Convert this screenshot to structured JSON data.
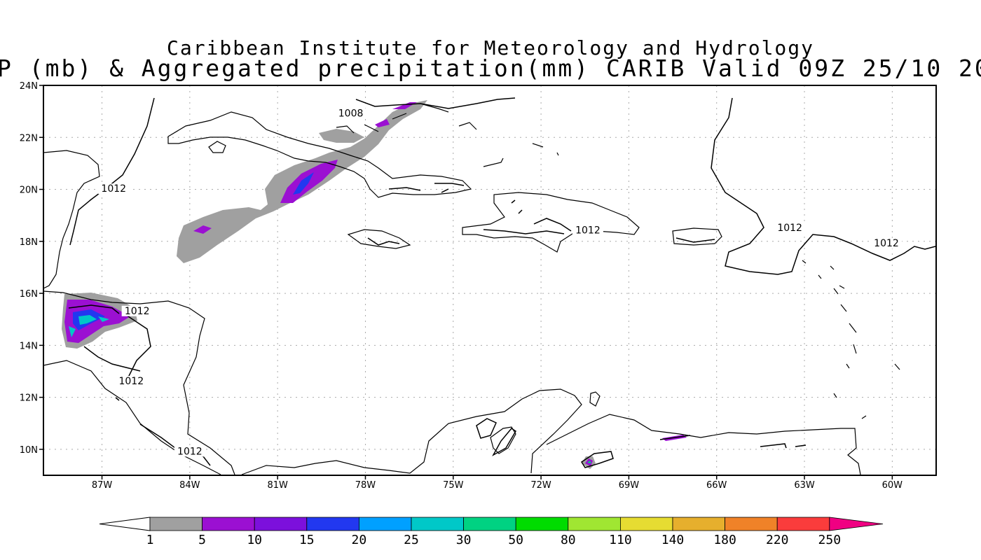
{
  "title": {
    "line1": "Caribbean Institute for Meteorology and Hydrology",
    "line2": "P (mb) & Aggregated precipitation(mm) CARIB Valid 09Z 25/10 20"
  },
  "map": {
    "lon_range": [
      -89,
      -58.5
    ],
    "lat_range": [
      9,
      24
    ],
    "lat_ticks": [
      "24N",
      "22N",
      "20N",
      "18N",
      "16N",
      "14N",
      "12N",
      "10N"
    ],
    "lat_values": [
      24,
      22,
      20,
      18,
      16,
      14,
      12,
      10
    ],
    "lon_ticks": [
      "87W",
      "84W",
      "81W",
      "78W",
      "75W",
      "72W",
      "69W",
      "66W",
      "63W",
      "60W"
    ],
    "lon_values": [
      -87,
      -84,
      -81,
      -78,
      -75,
      -72,
      -69,
      -66,
      -63,
      -60
    ],
    "grid": "dotted",
    "pressure_labels": [
      {
        "text": "1008",
        "lon": -78.5,
        "lat": 22.8
      },
      {
        "text": "1012",
        "lon": -86.6,
        "lat": 19.9
      },
      {
        "text": "1012",
        "lon": -70.4,
        "lat": 18.3
      },
      {
        "text": "1012",
        "lon": -63.5,
        "lat": 18.4
      },
      {
        "text": "1012",
        "lon": -60.2,
        "lat": 17.8
      },
      {
        "text": "1012",
        "lon": -85.8,
        "lat": 15.2
      },
      {
        "text": "1012",
        "lon": -86.0,
        "lat": 12.5
      },
      {
        "text": "1012",
        "lon": -84.0,
        "lat": 9.8
      }
    ]
  },
  "colorbar": {
    "labels": [
      "1",
      "5",
      "10",
      "15",
      "20",
      "25",
      "30",
      "50",
      "80",
      "110",
      "140",
      "180",
      "220",
      "250"
    ],
    "colors": [
      "#a0a0a0",
      "#9b10d2",
      "#7c10dc",
      "#2238f0",
      "#00a0ff",
      "#00c8c8",
      "#00d282",
      "#00dc00",
      "#a0e632",
      "#e6dc32",
      "#e6af2d",
      "#f08228",
      "#fa3c3c",
      "#f00082"
    ]
  }
}
